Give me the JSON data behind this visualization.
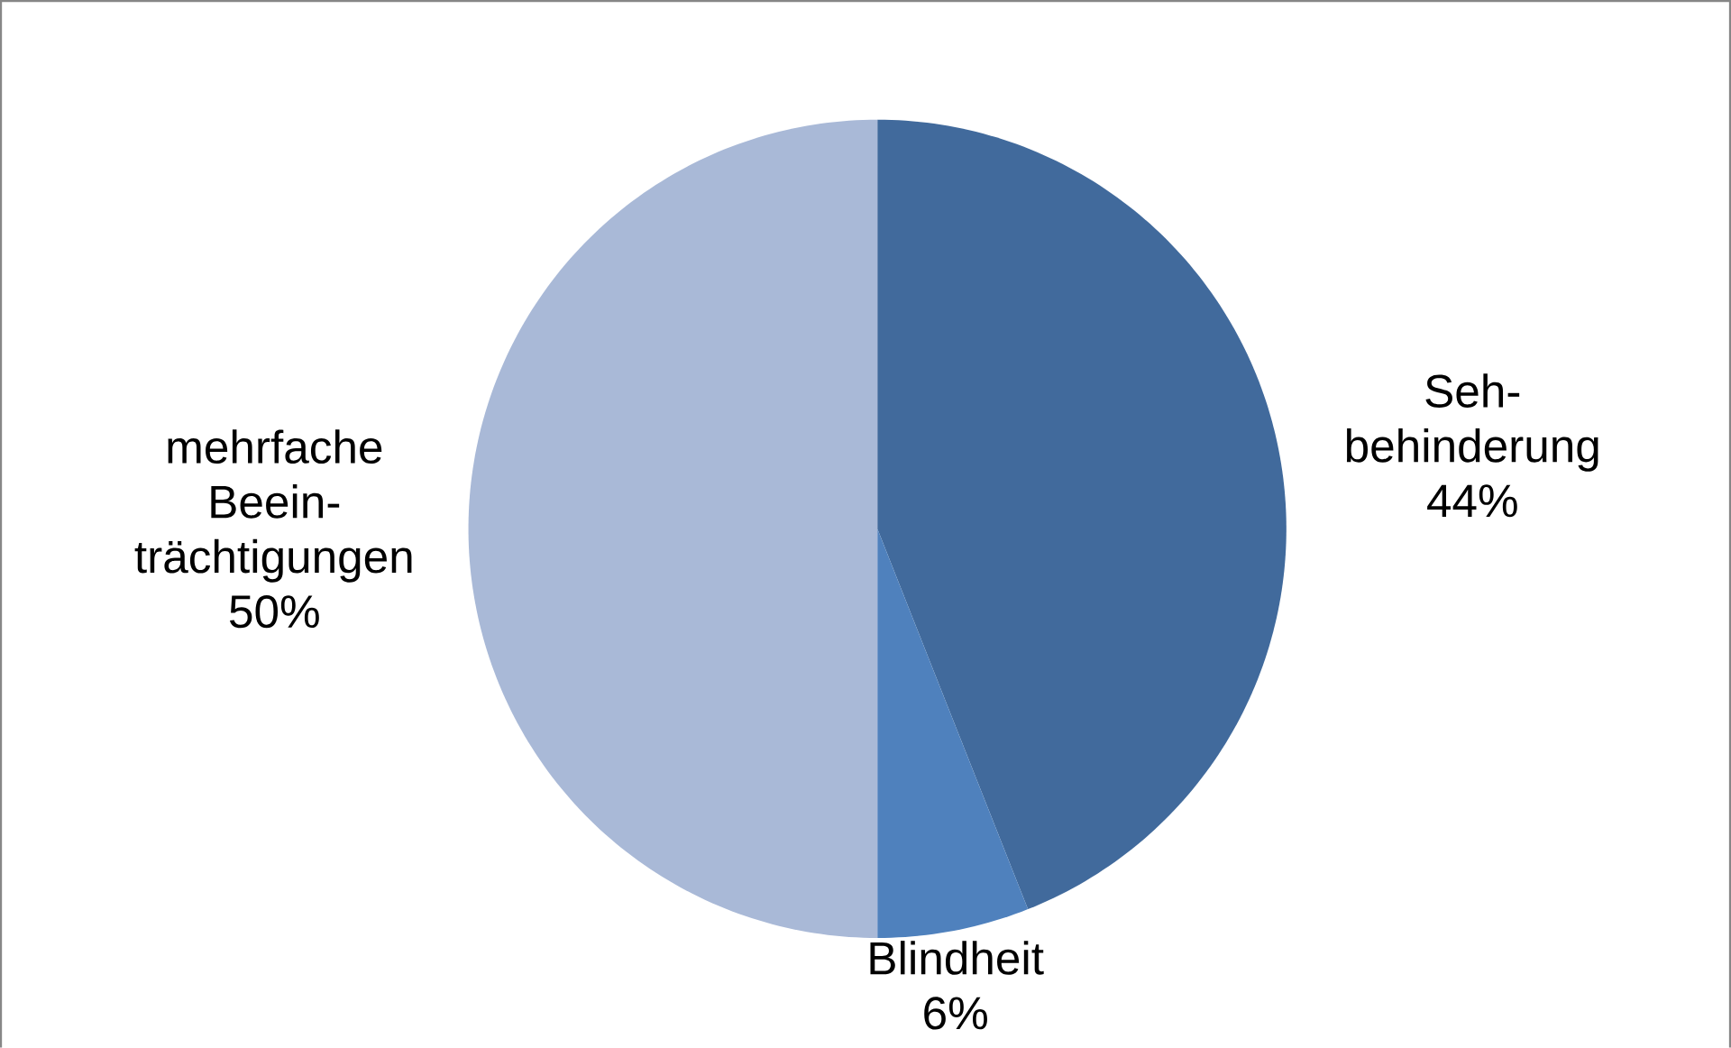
{
  "chart_data": {
    "type": "pie",
    "categories": [
      "Seh-behinderung",
      "Blindheit",
      "mehrfache Beein-trächtigungen"
    ],
    "values": [
      44,
      6,
      50
    ],
    "colors": [
      "#416a9c",
      "#4f81bd",
      "#a9b9d7"
    ],
    "value_labels": [
      "44%",
      "6%",
      "50%"
    ]
  }
}
